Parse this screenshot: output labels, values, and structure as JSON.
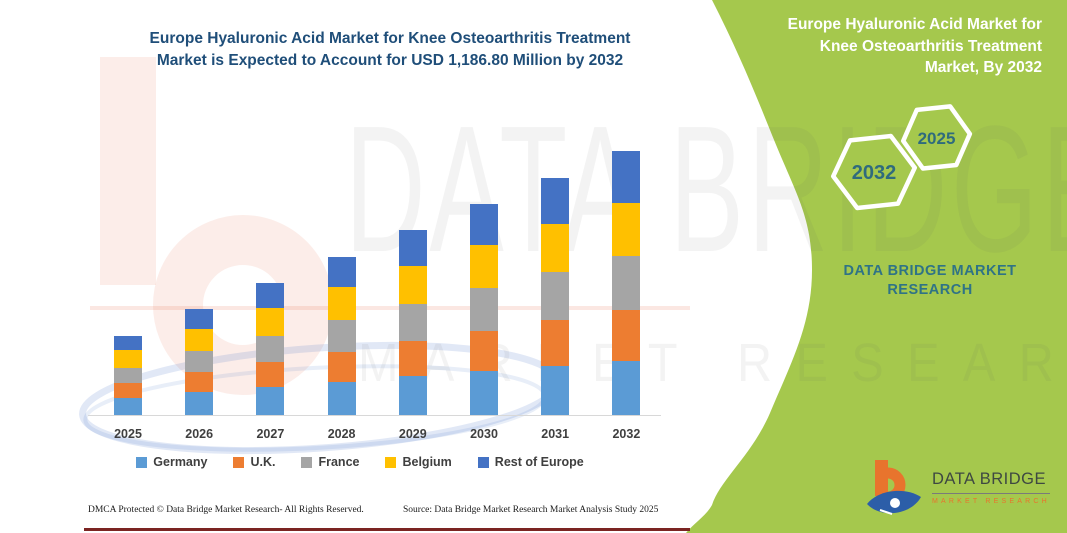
{
  "title": "Europe Hyaluronic Acid Market for Knee Osteoarthritis Treatment\nMarket is Expected to Account for USD 1,186.80 Million by 2032",
  "chart_data": {
    "type": "bar",
    "stacked": true,
    "title": "Europe Hyaluronic Acid Market for Knee Osteoarthritis Treatment Market is Expected to Account for USD 1,186.80 Million by 2032",
    "unit": "USD Million",
    "categories": [
      "2025",
      "2026",
      "2027",
      "2028",
      "2029",
      "2030",
      "2031",
      "2032"
    ],
    "series": [
      {
        "name": "Germany",
        "color": "#5B9BD5",
        "values": [
          82,
          106,
          129,
          153,
          177,
          201,
          224,
          247.8
        ]
      },
      {
        "name": "U.K.",
        "color": "#ED7D31",
        "values": [
          66,
          89,
          112,
          135,
          158,
          181,
          204,
          227
        ]
      },
      {
        "name": "France",
        "color": "#A5A5A5",
        "values": [
          69,
          94,
          118,
          143,
          168,
          193,
          217,
          242
        ]
      },
      {
        "name": "Belgium",
        "color": "#FFC000",
        "values": [
          79,
          102,
          125,
          148,
          170,
          193,
          216,
          239
        ]
      },
      {
        "name": "Rest of Europe",
        "color": "#4472C4",
        "values": [
          63,
          87,
          111,
          135,
          159,
          183,
          207,
          231
        ]
      }
    ],
    "totals": [
      359,
      478,
      595,
      714,
      832,
      951,
      1068,
      1186.8
    ],
    "value_2032_label": "USD 1,186.80 Million",
    "value_axis_visible": false,
    "grid": false,
    "legend_position": "bottom"
  },
  "side_panel": {
    "title": "Europe Hyaluronic Acid Market for\nKnee Osteoarthritis Treatment\nMarket, By 2032",
    "hexagon_large_year": "2032",
    "hexagon_small_year": "2025",
    "brand_text": "DATA BRIDGE MARKET\nRESEARCH",
    "bg_color": "#A5C84D",
    "brand_text_color": "#2F7386",
    "year_text_color": "#2F6B7D"
  },
  "watermark": {
    "line1": "DATA BRIDGE",
    "line2": "MARKET RESEARCH"
  },
  "logo": {
    "name": "DATA BRIDGE",
    "subtitle": "MARKET RESEARCH"
  },
  "footer": {
    "dmca": "DMCA Protected © Data Bridge Market Research-  All Rights Reserved.",
    "source": "Source: Data Bridge Market Research  Market Analysis Study 2025"
  }
}
